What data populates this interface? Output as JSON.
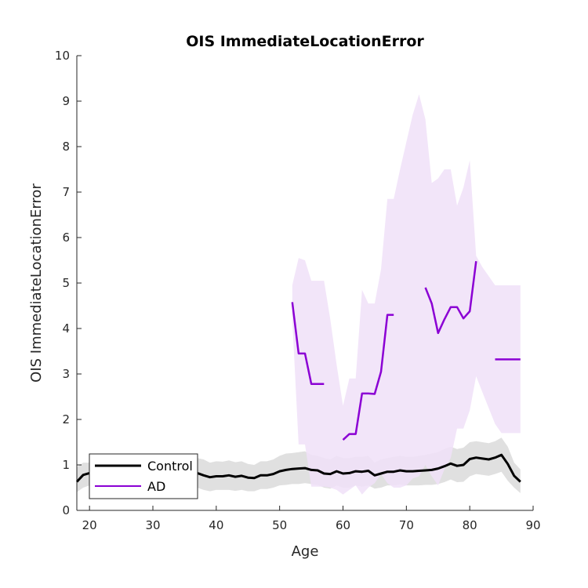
{
  "chart_data": {
    "type": "line",
    "title": "OIS ImmediateLocationError",
    "xlabel": "Age",
    "ylabel": "OIS ImmediateLocationError",
    "xlim": [
      18,
      90
    ],
    "ylim": [
      0,
      10
    ],
    "xticks": [
      20,
      30,
      40,
      50,
      60,
      70,
      80,
      90
    ],
    "yticks": [
      0,
      1,
      2,
      3,
      4,
      5,
      6,
      7,
      8,
      9,
      10
    ],
    "grid": false,
    "legend": {
      "position": "bottom-left",
      "entries": [
        "Control",
        "AD"
      ]
    },
    "series": [
      {
        "name": "Control",
        "color": "#000000",
        "band_color": "#e0e0e0",
        "x": [
          18,
          19,
          20,
          21,
          22,
          23,
          24,
          25,
          26,
          27,
          28,
          29,
          30,
          31,
          32,
          33,
          34,
          35,
          36,
          37,
          38,
          39,
          40,
          41,
          42,
          43,
          44,
          45,
          46,
          47,
          48,
          49,
          50,
          51,
          52,
          53,
          54,
          55,
          56,
          57,
          58,
          59,
          60,
          61,
          62,
          63,
          64,
          65,
          66,
          67,
          68,
          69,
          70,
          71,
          72,
          73,
          74,
          75,
          76,
          77,
          78,
          79,
          80,
          81,
          82,
          83,
          84,
          85,
          86,
          87,
          88
        ],
        "y": [
          0.63,
          0.78,
          0.82,
          0.79,
          0.78,
          0.8,
          0.82,
          0.83,
          0.84,
          0.82,
          0.8,
          0.83,
          0.84,
          0.83,
          0.84,
          0.85,
          0.86,
          0.88,
          0.85,
          0.82,
          0.77,
          0.73,
          0.75,
          0.75,
          0.77,
          0.74,
          0.76,
          0.72,
          0.71,
          0.77,
          0.77,
          0.8,
          0.86,
          0.89,
          0.91,
          0.92,
          0.93,
          0.89,
          0.88,
          0.81,
          0.8,
          0.86,
          0.81,
          0.82,
          0.86,
          0.85,
          0.87,
          0.77,
          0.81,
          0.85,
          0.85,
          0.88,
          0.86,
          0.86,
          0.87,
          0.88,
          0.89,
          0.92,
          0.97,
          1.03,
          0.98,
          1.0,
          1.13,
          1.16,
          1.14,
          1.12,
          1.16,
          1.22,
          1.02,
          0.76,
          0.63
        ],
        "upper": [
          0.95,
          1.05,
          1.05,
          1.1,
          1.1,
          1.12,
          1.15,
          1.18,
          1.15,
          1.12,
          1.1,
          1.15,
          1.17,
          1.15,
          1.2,
          1.23,
          1.25,
          1.25,
          1.2,
          1.15,
          1.12,
          1.05,
          1.08,
          1.07,
          1.1,
          1.06,
          1.08,
          1.02,
          1.0,
          1.08,
          1.08,
          1.12,
          1.2,
          1.25,
          1.26,
          1.28,
          1.3,
          1.22,
          1.2,
          1.15,
          1.12,
          1.2,
          1.15,
          1.15,
          1.18,
          1.18,
          1.2,
          1.05,
          1.12,
          1.15,
          1.18,
          1.2,
          1.18,
          1.18,
          1.2,
          1.22,
          1.25,
          1.28,
          1.35,
          1.4,
          1.35,
          1.38,
          1.5,
          1.52,
          1.5,
          1.48,
          1.52,
          1.6,
          1.4,
          1.05,
          0.9
        ],
        "lower": [
          0.4,
          0.5,
          0.55,
          0.5,
          0.5,
          0.52,
          0.55,
          0.55,
          0.55,
          0.52,
          0.5,
          0.52,
          0.55,
          0.52,
          0.52,
          0.5,
          0.52,
          0.55,
          0.52,
          0.5,
          0.45,
          0.42,
          0.45,
          0.45,
          0.45,
          0.43,
          0.45,
          0.42,
          0.42,
          0.47,
          0.47,
          0.5,
          0.55,
          0.56,
          0.58,
          0.58,
          0.6,
          0.58,
          0.56,
          0.5,
          0.48,
          0.55,
          0.5,
          0.5,
          0.55,
          0.52,
          0.55,
          0.48,
          0.5,
          0.55,
          0.55,
          0.57,
          0.55,
          0.55,
          0.55,
          0.56,
          0.56,
          0.58,
          0.62,
          0.68,
          0.62,
          0.63,
          0.75,
          0.8,
          0.78,
          0.76,
          0.8,
          0.85,
          0.65,
          0.5,
          0.38
        ]
      },
      {
        "name": "AD",
        "color": "#8b00d4",
        "band_color": "#f0e1f8",
        "segments": [
          {
            "x": [
              52,
              53,
              54,
              55,
              56,
              57
            ],
            "y": [
              4.58,
              3.45,
              3.45,
              2.78,
              2.78,
              2.78
            ]
          },
          {
            "x": [
              60,
              61,
              62,
              63,
              64,
              65,
              66,
              67,
              68
            ],
            "y": [
              1.55,
              1.68,
              1.68,
              2.57,
              2.57,
              2.56,
              3.05,
              4.3,
              4.3
            ]
          },
          {
            "x": [
              73,
              74,
              75,
              76,
              77,
              78,
              79,
              80,
              81
            ],
            "y": [
              4.9,
              4.55,
              3.9,
              4.2,
              4.47,
              4.47,
              4.22,
              4.38,
              5.48
            ]
          },
          {
            "x": [
              84,
              85,
              86,
              87,
              88
            ],
            "y": [
              3.32,
              3.32,
              3.32,
              3.32,
              3.32
            ]
          }
        ],
        "band": {
          "x": [
            52,
            53,
            54,
            55,
            56,
            57,
            58,
            59,
            60,
            61,
            62,
            63,
            64,
            65,
            66,
            67,
            68,
            69,
            70,
            71,
            72,
            73,
            74,
            75,
            76,
            77,
            78,
            79,
            80,
            81,
            82,
            83,
            84,
            85,
            86,
            87,
            88
          ],
          "upper": [
            4.95,
            5.55,
            5.5,
            5.05,
            5.05,
            5.05,
            4.2,
            3.2,
            2.3,
            2.9,
            2.9,
            4.85,
            4.55,
            4.55,
            5.3,
            6.85,
            6.85,
            7.5,
            8.1,
            8.7,
            9.15,
            8.6,
            7.2,
            7.3,
            7.5,
            7.5,
            6.7,
            7.1,
            7.7,
            5.6,
            5.35,
            5.15,
            4.95,
            4.95,
            4.95,
            4.95,
            4.95
          ],
          "lower": [
            4.2,
            1.45,
            1.45,
            0.52,
            0.52,
            0.52,
            0.5,
            0.45,
            0.35,
            0.45,
            0.55,
            0.35,
            0.5,
            0.6,
            0.8,
            0.6,
            0.5,
            0.5,
            0.55,
            0.7,
            0.75,
            1.0,
            0.75,
            0.55,
            0.9,
            1.15,
            1.8,
            1.8,
            2.2,
            2.95,
            2.6,
            2.25,
            1.9,
            1.7,
            1.7,
            1.7,
            1.7
          ]
        }
      }
    ]
  }
}
